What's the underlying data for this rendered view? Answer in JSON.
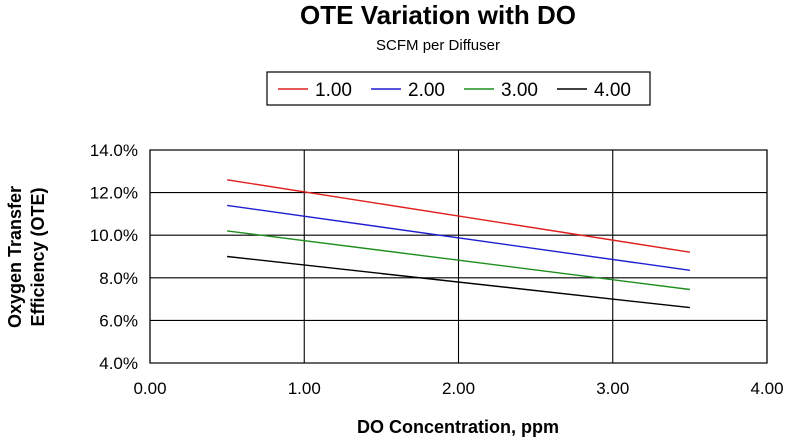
{
  "chart_data": {
    "type": "line",
    "title": "OTE Variation with DO",
    "subtitle": "SCFM per Diffuser",
    "xlabel": "DO Concentration, ppm",
    "ylabel_lines": [
      "Oxygen Transfer",
      "Efficiency (OTE)"
    ],
    "xlim": [
      0,
      4
    ],
    "ylim": [
      0.04,
      0.14
    ],
    "x_ticks": [
      0,
      1,
      2,
      3,
      4
    ],
    "x_tick_labels": [
      "0.00",
      "1.00",
      "2.00",
      "3.00",
      "4.00"
    ],
    "y_ticks": [
      0.04,
      0.06,
      0.08,
      0.1,
      0.12,
      0.14
    ],
    "y_tick_labels": [
      "4.0%",
      "6.0%",
      "8.0%",
      "10.0%",
      "12.0%",
      "14.0%"
    ],
    "grid": true,
    "legend_position": "top",
    "series": [
      {
        "name": "1.00",
        "color": "#e0201e",
        "x": [
          0.5,
          3.5
        ],
        "y": [
          0.126,
          0.092
        ]
      },
      {
        "name": "2.00",
        "color": "#1f1fd0",
        "x": [
          0.5,
          3.5
        ],
        "y": [
          0.114,
          0.0835
        ]
      },
      {
        "name": "3.00",
        "color": "#1e8f1e",
        "x": [
          0.5,
          3.5
        ],
        "y": [
          0.102,
          0.0745
        ]
      },
      {
        "name": "4.00",
        "color": "#000000",
        "x": [
          0.5,
          3.5
        ],
        "y": [
          0.09,
          0.066
        ]
      }
    ]
  }
}
